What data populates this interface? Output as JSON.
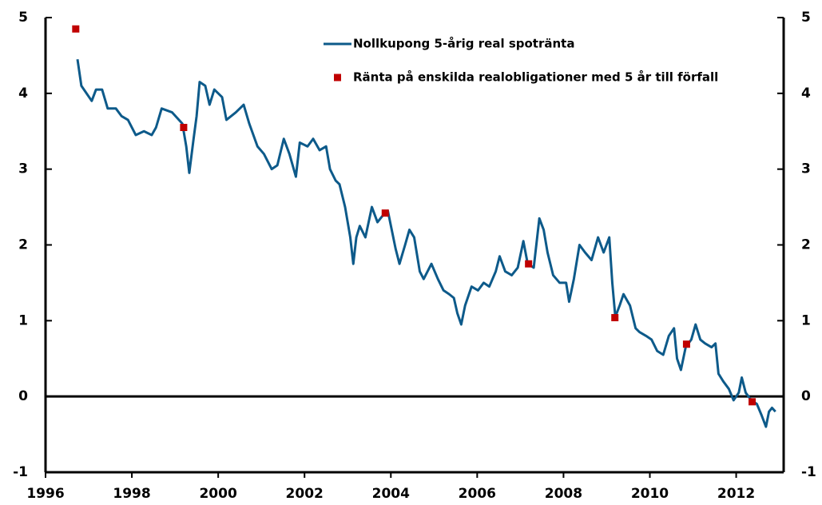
{
  "chart_data": {
    "type": "line",
    "series": [
      {
        "name": "Nollkupong 5-årig real spotränta",
        "color": "#0d5a8a",
        "type": "line",
        "x": [
          1996.74,
          1996.83,
          1997.07,
          1997.17,
          1997.31,
          1997.44,
          1997.63,
          1997.76,
          1997.91,
          1998.09,
          1998.28,
          1998.46,
          1998.56,
          1998.69,
          1998.93,
          1999.17,
          1999.26,
          1999.33,
          1999.43,
          1999.5,
          1999.57,
          1999.7,
          1999.8,
          1999.91,
          2000.09,
          2000.19,
          2000.41,
          2000.59,
          2000.72,
          2000.91,
          2001.06,
          2001.24,
          2001.37,
          2001.52,
          2001.65,
          2001.8,
          2001.89,
          2002.07,
          2002.2,
          2002.35,
          2002.5,
          2002.59,
          2002.72,
          2002.81,
          2002.94,
          2003.06,
          2003.13,
          2003.2,
          2003.28,
          2003.41,
          2003.56,
          2003.69,
          2003.83,
          2003.93,
          2004.02,
          2004.11,
          2004.2,
          2004.33,
          2004.43,
          2004.54,
          2004.67,
          2004.76,
          2004.94,
          2005.09,
          2005.22,
          2005.35,
          2005.46,
          2005.54,
          2005.63,
          2005.72,
          2005.87,
          2006.02,
          2006.15,
          2006.28,
          2006.43,
          2006.52,
          2006.65,
          2006.8,
          2006.94,
          2007.07,
          2007.17,
          2007.31,
          2007.44,
          2007.54,
          2007.63,
          2007.76,
          2007.91,
          2008.06,
          2008.13,
          2008.24,
          2008.37,
          2008.5,
          2008.65,
          2008.8,
          2008.93,
          2009.06,
          2009.13,
          2009.2,
          2009.3,
          2009.39,
          2009.54,
          2009.67,
          2009.76,
          2009.91,
          2010.04,
          2010.17,
          2010.31,
          2010.44,
          2010.56,
          2010.63,
          2010.72,
          2010.83,
          2010.96,
          2011.06,
          2011.17,
          2011.28,
          2011.43,
          2011.52,
          2011.59,
          2011.7,
          2011.83,
          2011.94,
          2012.06,
          2012.13,
          2012.22,
          2012.35,
          2012.48,
          2012.59,
          2012.69,
          2012.76,
          2012.83,
          2012.91
        ],
        "values": [
          4.45,
          4.1,
          3.9,
          4.05,
          4.05,
          3.8,
          3.8,
          3.7,
          3.65,
          3.45,
          3.5,
          3.45,
          3.55,
          3.8,
          3.75,
          3.6,
          3.3,
          2.95,
          3.4,
          3.7,
          4.15,
          4.1,
          3.85,
          4.05,
          3.95,
          3.65,
          3.75,
          3.85,
          3.6,
          3.3,
          3.2,
          3.0,
          3.05,
          3.4,
          3.2,
          2.9,
          3.35,
          3.3,
          3.4,
          3.25,
          3.3,
          3.0,
          2.85,
          2.8,
          2.5,
          2.1,
          1.75,
          2.1,
          2.25,
          2.1,
          2.5,
          2.3,
          2.4,
          2.45,
          2.2,
          1.95,
          1.75,
          2.0,
          2.2,
          2.1,
          1.65,
          1.55,
          1.75,
          1.55,
          1.4,
          1.35,
          1.3,
          1.1,
          0.95,
          1.2,
          1.45,
          1.4,
          1.5,
          1.45,
          1.65,
          1.85,
          1.65,
          1.6,
          1.7,
          2.05,
          1.75,
          1.7,
          2.35,
          2.2,
          1.9,
          1.6,
          1.5,
          1.5,
          1.25,
          1.55,
          2.0,
          1.9,
          1.8,
          2.1,
          1.9,
          2.1,
          1.5,
          1.05,
          1.2,
          1.35,
          1.2,
          0.9,
          0.85,
          0.8,
          0.75,
          0.6,
          0.55,
          0.8,
          0.9,
          0.5,
          0.35,
          0.65,
          0.75,
          0.95,
          0.75,
          0.7,
          0.65,
          0.7,
          0.3,
          0.2,
          0.1,
          -0.05,
          0.05,
          0.25,
          0.05,
          -0.05,
          -0.1,
          -0.25,
          -0.4,
          -0.2,
          -0.15,
          -0.2
        ]
      },
      {
        "name": "Ränta på enskilda realobligationer med 5 år till förfall",
        "color": "#c00000",
        "type": "scatter",
        "x": [
          1996.7,
          1999.2,
          2003.87,
          2007.19,
          2009.19,
          2010.85,
          2012.37
        ],
        "values": [
          4.85,
          3.55,
          2.42,
          1.75,
          1.04,
          0.69,
          -0.07
        ]
      }
    ],
    "xlim": [
      1996,
      2013.1
    ],
    "xticks": [
      1996,
      1998,
      2000,
      2002,
      2004,
      2006,
      2008,
      2010,
      2012
    ],
    "ylim": [
      -1,
      5
    ],
    "yticks": [
      -1,
      0,
      1,
      2,
      3,
      4,
      5
    ],
    "y2lim": [
      -1,
      5
    ],
    "y2ticks": [
      -1,
      0,
      1,
      2,
      3,
      4,
      5
    ],
    "grid": false,
    "legend": "top"
  }
}
